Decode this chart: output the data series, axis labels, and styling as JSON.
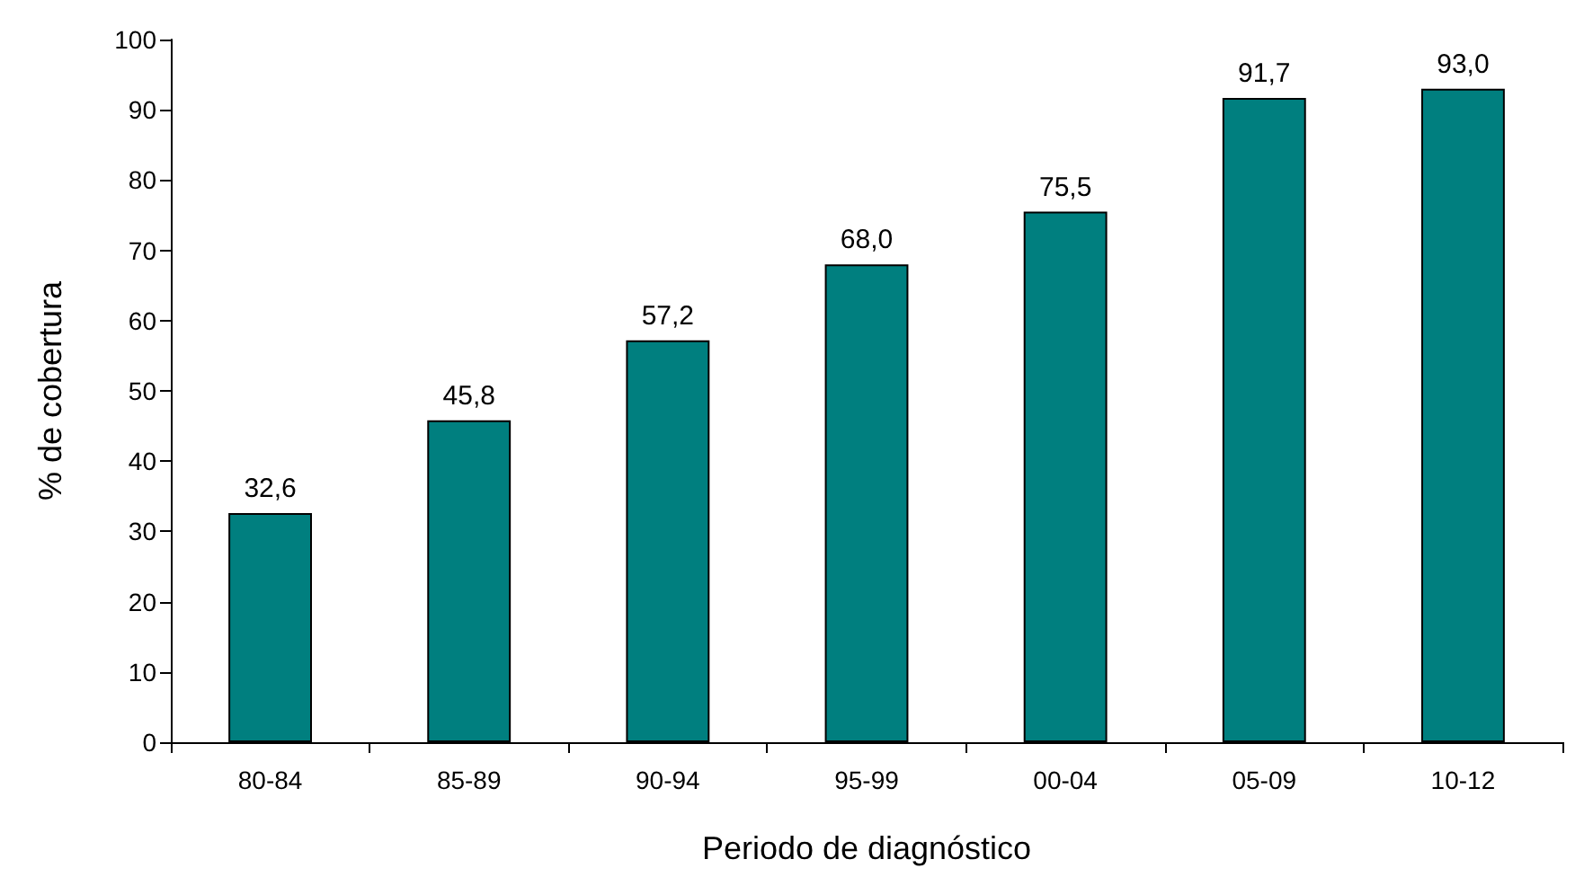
{
  "chart_data": {
    "type": "bar",
    "xlabel": "Periodo de diagnóstico",
    "ylabel": "% de cobertura",
    "categories": [
      "80-84",
      "85-89",
      "90-94",
      "95-99",
      "00-04",
      "05-09",
      "10-12"
    ],
    "values": [
      32.6,
      45.8,
      57.2,
      68.0,
      75.5,
      91.7,
      93.0
    ],
    "value_labels": [
      "32,6",
      "45,8",
      "57,2",
      "68,0",
      "75,5",
      "91,7",
      "93,0"
    ],
    "color": "#007f7f",
    "ylim": [
      0,
      100
    ],
    "yticks": [
      0,
      10,
      20,
      30,
      40,
      50,
      60,
      70,
      80,
      90,
      100
    ],
    "grid": false
  }
}
